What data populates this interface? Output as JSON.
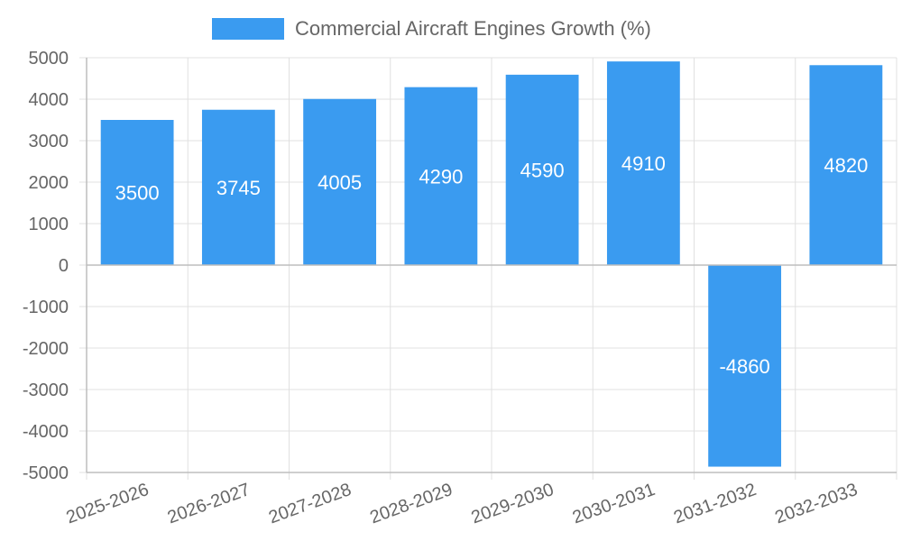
{
  "chart_data": {
    "type": "bar",
    "categories": [
      "2025-2026",
      "2026-2027",
      "2027-2028",
      "2028-2029",
      "2029-2030",
      "2030-2031",
      "2031-2032",
      "2032-2033"
    ],
    "series": [
      {
        "name": "Commercial Aircraft Engines Growth (%)",
        "values": [
          3500,
          3745,
          4005,
          4290,
          4590,
          4910,
          -4860,
          4820
        ],
        "color": "#3a9bf0"
      }
    ],
    "ylim": [
      -5000,
      5000
    ],
    "yticks": [
      5000,
      4000,
      3000,
      2000,
      1000,
      0,
      -1000,
      -2000,
      -3000,
      -4000,
      -5000
    ],
    "grid": true,
    "legend_position": "top-center",
    "data_labels": true
  }
}
